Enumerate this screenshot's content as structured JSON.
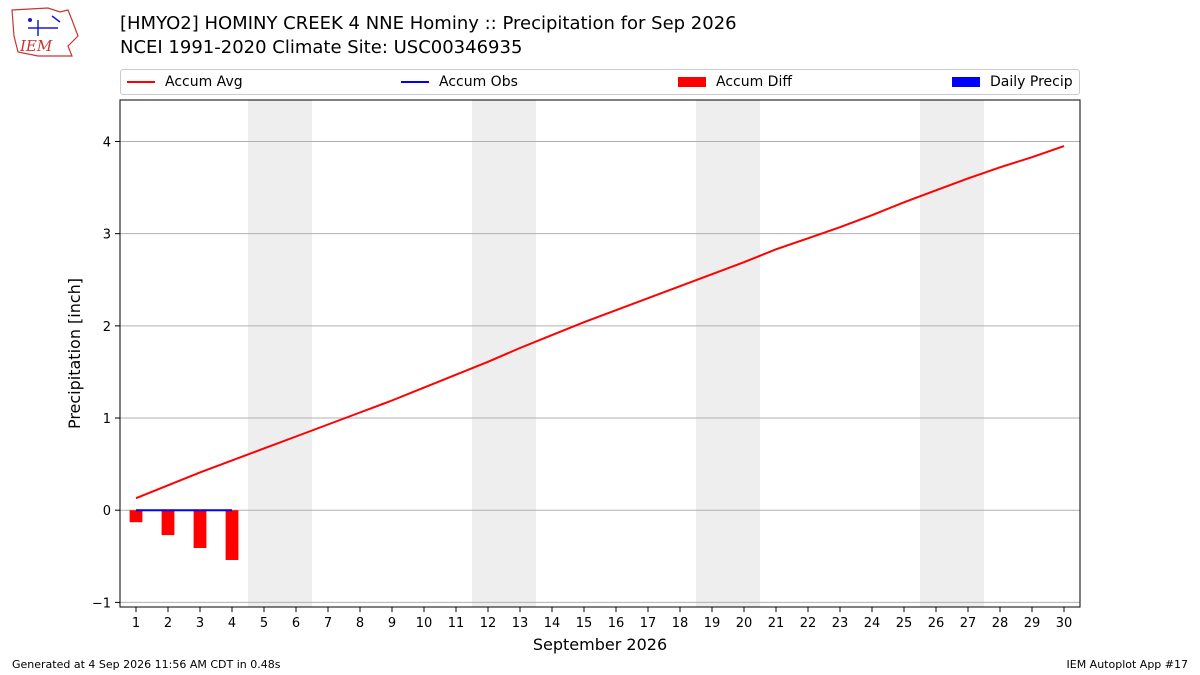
{
  "header": {
    "logo_text": "IEM",
    "title_line1": "[HMYO2] HOMINY CREEK 4 NNE Hominy :: Precipitation for Sep 2026",
    "title_line2": "NCEI 1991-2020 Climate Site: USC00346935"
  },
  "legend": {
    "placement": "top",
    "items": [
      {
        "label": "Accum Avg",
        "kind": "line",
        "color": "#ff0000"
      },
      {
        "label": "Accum Obs",
        "kind": "line",
        "color": "#0000ff"
      },
      {
        "label": "Accum Diff",
        "kind": "patch",
        "color": "#ff0000"
      },
      {
        "label": "Daily Precip",
        "kind": "patch",
        "color": "#0000ff"
      }
    ]
  },
  "footer": {
    "generated": "Generated at 4 Sep 2026 11:56 AM CDT in 0.48s",
    "app": "IEM Autoplot App #17"
  },
  "chart_data": {
    "type": "line",
    "title": "[HMYO2] HOMINY CREEK 4 NNE Hominy :: Precipitation for Sep 2026",
    "subtitle": "NCEI 1991-2020 Climate Site: USC00346935",
    "xlabel": "September 2026",
    "ylabel": "Precipitation [inch]",
    "x": [
      1,
      2,
      3,
      4,
      5,
      6,
      7,
      8,
      9,
      10,
      11,
      12,
      13,
      14,
      15,
      16,
      17,
      18,
      19,
      20,
      21,
      22,
      23,
      24,
      25,
      26,
      27,
      28,
      29,
      30
    ],
    "xlim": [
      0.5,
      30.5
    ],
    "ylim": [
      -1.05,
      4.45
    ],
    "yticks": [
      -1,
      0,
      1,
      2,
      3,
      4
    ],
    "grid": "horizontal",
    "weekend_shading": [
      [
        4.5,
        6.5
      ],
      [
        11.5,
        13.5
      ],
      [
        18.5,
        20.5
      ],
      [
        25.5,
        27.5
      ]
    ],
    "series": [
      {
        "name": "Accum Avg",
        "type": "line",
        "color": "#ff0000",
        "x": [
          1,
          2,
          3,
          4,
          5,
          6,
          7,
          8,
          9,
          10,
          11,
          12,
          13,
          14,
          15,
          16,
          17,
          18,
          19,
          20,
          21,
          22,
          23,
          24,
          25,
          26,
          27,
          28,
          29,
          30
        ],
        "values": [
          0.13,
          0.27,
          0.41,
          0.54,
          0.67,
          0.8,
          0.93,
          1.06,
          1.19,
          1.33,
          1.47,
          1.61,
          1.76,
          1.9,
          2.04,
          2.17,
          2.3,
          2.43,
          2.56,
          2.69,
          2.83,
          2.95,
          3.07,
          3.2,
          3.34,
          3.47,
          3.6,
          3.72,
          3.83,
          3.95
        ]
      },
      {
        "name": "Accum Obs",
        "type": "line",
        "color": "#0000ff",
        "x": [
          1,
          2,
          3,
          4
        ],
        "values": [
          0.0,
          0.0,
          0.0,
          0.0
        ]
      },
      {
        "name": "Accum Diff",
        "type": "bar",
        "color": "#ff0000",
        "x": [
          1,
          2,
          3,
          4
        ],
        "values": [
          -0.13,
          -0.27,
          -0.41,
          -0.54
        ]
      },
      {
        "name": "Daily Precip",
        "type": "bar",
        "color": "#0000ff",
        "x": [
          1,
          2,
          3,
          4
        ],
        "values": [
          0.0,
          0.0,
          0.0,
          0.0
        ]
      }
    ]
  }
}
